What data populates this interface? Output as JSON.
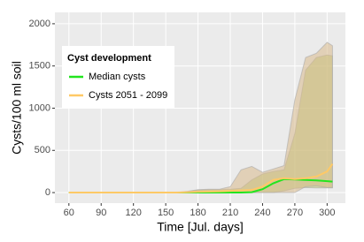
{
  "chart_data": {
    "type": "line",
    "x_label": "Time [Jul. days]",
    "y_label": "Cysts/100 ml soil",
    "legend_title": "Cyst development",
    "legend": "top-left",
    "x": [
      60,
      70,
      80,
      90,
      100,
      110,
      120,
      130,
      140,
      150,
      160,
      170,
      180,
      190,
      200,
      210,
      220,
      230,
      240,
      250,
      260,
      270,
      280,
      290,
      300,
      305
    ],
    "series": [
      {
        "name": "Median cysts",
        "color": "#22e51e",
        "ribbon_color": "#b8c86a",
        "values": [
          0,
          0,
          0,
          0,
          0,
          0,
          0,
          0,
          0,
          0,
          0,
          0,
          0,
          0,
          0,
          0,
          0,
          5,
          40,
          110,
          160,
          155,
          150,
          145,
          135,
          130
        ],
        "lower": [
          0,
          0,
          0,
          0,
          0,
          0,
          0,
          0,
          0,
          0,
          0,
          0,
          0,
          0,
          0,
          0,
          0,
          0,
          0,
          0,
          20,
          50,
          60,
          55,
          55,
          55
        ],
        "upper": [
          0,
          0,
          0,
          0,
          0,
          0,
          0,
          0,
          0,
          0,
          0,
          10,
          30,
          35,
          35,
          40,
          50,
          150,
          220,
          250,
          270,
          700,
          1450,
          1600,
          1630,
          1620
        ]
      },
      {
        "name": "Cysts 2051 - 2099",
        "color": "#ffc966",
        "ribbon_color": "#d9b98c",
        "values": [
          0,
          0,
          0,
          0,
          0,
          0,
          0,
          0,
          0,
          0,
          0,
          5,
          10,
          12,
          15,
          20,
          25,
          30,
          70,
          150,
          170,
          160,
          170,
          190,
          250,
          340
        ],
        "lower": [
          0,
          0,
          0,
          0,
          0,
          0,
          0,
          0,
          0,
          0,
          0,
          0,
          0,
          0,
          0,
          0,
          0,
          0,
          0,
          0,
          0,
          0,
          70,
          80,
          60,
          60
        ],
        "upper": [
          0,
          0,
          0,
          0,
          0,
          0,
          0,
          0,
          0,
          0,
          0,
          15,
          35,
          40,
          40,
          70,
          270,
          310,
          240,
          280,
          320,
          1100,
          1600,
          1650,
          1780,
          1740
        ]
      }
    ],
    "xlim": [
      47,
      317
    ],
    "xticks": [
      60,
      90,
      120,
      150,
      180,
      210,
      240,
      270,
      300
    ],
    "ylim": [
      -125,
      2135
    ],
    "yticks": [
      0,
      500,
      1000,
      1500,
      2000
    ],
    "grid": true
  }
}
